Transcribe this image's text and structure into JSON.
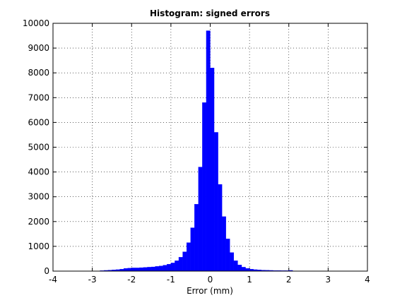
{
  "chart_data": {
    "type": "histogram",
    "title": "Histogram: signed errors",
    "xlabel": "Error (mm)",
    "bins": [
      -2.8,
      -2.7,
      -2.6,
      -2.5,
      -2.4,
      -2.3,
      -2.2,
      -2.1,
      -2.0,
      -1.9,
      -1.8,
      -1.7,
      -1.6,
      -1.5,
      -1.4,
      -1.3,
      -1.2,
      -1.1,
      -1.0,
      -0.9,
      -0.8,
      -0.7,
      -0.6,
      -0.5,
      -0.4,
      -0.3,
      -0.2,
      -0.1,
      0,
      0.1,
      0.2,
      0.3,
      0.4,
      0.5,
      0.6,
      0.7,
      0.8,
      0.9,
      1.0,
      1.1,
      1.2,
      1.3,
      1.4,
      1.5,
      1.6,
      1.7,
      1.8,
      1.9,
      2.0,
      2.1,
      2.2
    ],
    "values": [
      20,
      30,
      40,
      50,
      60,
      80,
      110,
      120,
      130,
      130,
      140,
      150,
      160,
      170,
      190,
      210,
      240,
      280,
      330,
      420,
      560,
      780,
      1150,
      1750,
      2700,
      4200,
      6800,
      9700,
      8200,
      5600,
      3500,
      2200,
      1300,
      750,
      420,
      250,
      160,
      110,
      80,
      60,
      50,
      40,
      35,
      30,
      25,
      25,
      20,
      20,
      30,
      10
    ],
    "color": "#0000ff",
    "xlim": [
      -4,
      4
    ],
    "xticks": [
      -4,
      -3,
      -2,
      -1,
      0,
      1,
      2,
      3,
      4
    ],
    "ylim": [
      0,
      10000
    ],
    "yticks": [
      0,
      1000,
      2000,
      3000,
      4000,
      5000,
      6000,
      7000,
      8000,
      9000,
      10000
    ],
    "grid": true
  }
}
